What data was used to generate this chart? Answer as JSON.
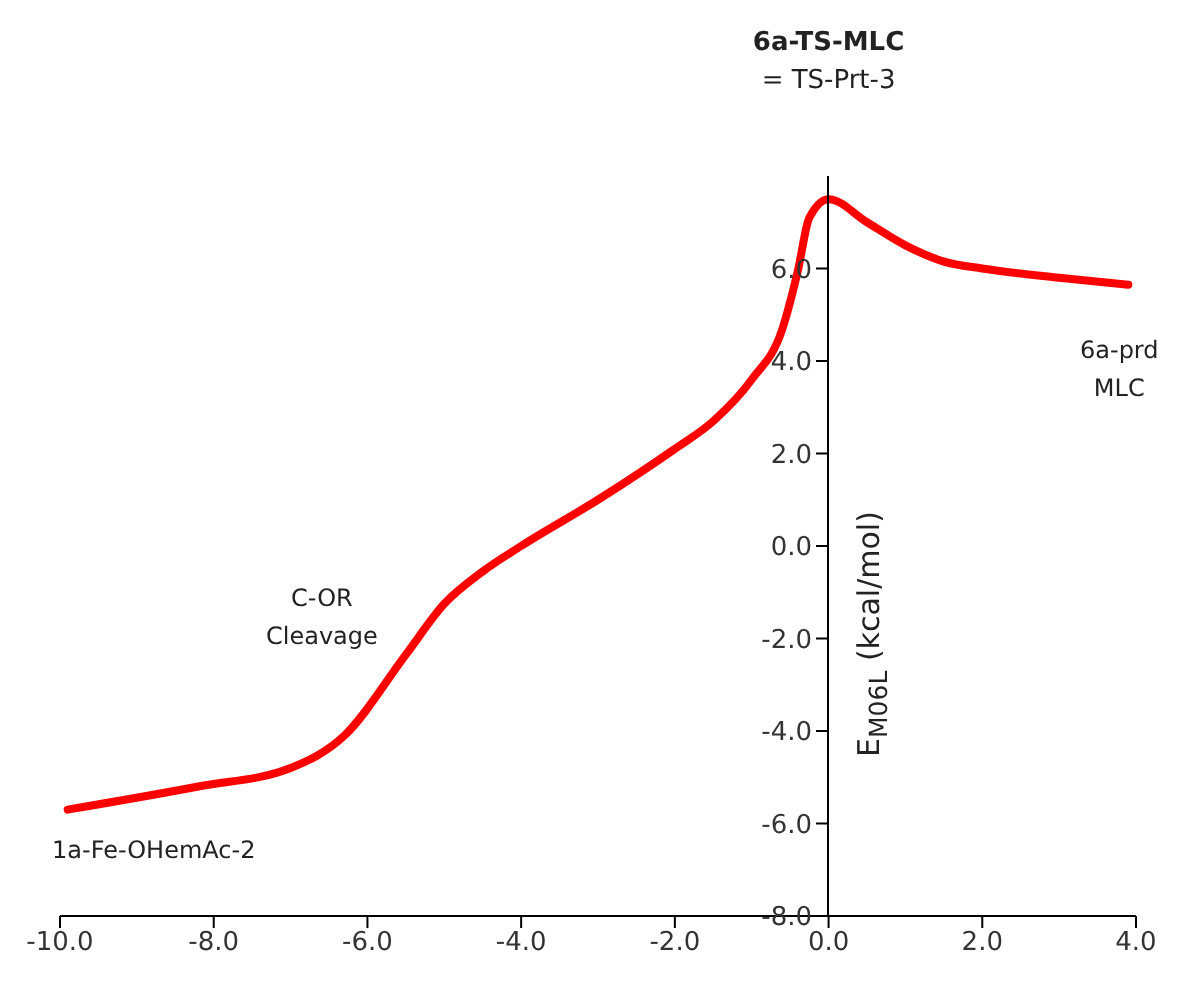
{
  "chart_data": {
    "type": "line",
    "title": "6a-TS-MLC",
    "subtitle": "= TS-Prt-3",
    "ylabel": "E$_{M06L}$ (kcal/mol)",
    "annotations": [
      "1a-Fe-OHemAc-2",
      "C-OR\nCleavage",
      "6a-prd\nMLC"
    ],
    "x": [
      -9.9,
      -8.2,
      -7.0,
      -6.3,
      -5.5,
      -5.0,
      -4.5,
      -4.0,
      -3.0,
      -2.0,
      -1.5,
      -1.0,
      -0.6,
      -0.4,
      -0.25,
      0,
      0.5,
      1.0,
      1.5,
      2.0,
      3.0,
      3.9
    ],
    "series": [
      {
        "color": "#ff0000",
        "values": [
          -5.7,
          -5.2,
          -4.8,
          -4.1,
          -2.35,
          -1.25,
          -0.55,
          0.0,
          1.0,
          2.1,
          2.7,
          3.6,
          4.7,
          5.95,
          7.1,
          7.5,
          7.0,
          6.5,
          6.15,
          6.0,
          5.8,
          5.65
        ]
      }
    ],
    "xlim": [
      -10,
      4
    ],
    "xticks": [
      {
        "value": -10,
        "label": "-10.0"
      },
      {
        "value": -8,
        "label": "-8.0"
      },
      {
        "value": -6,
        "label": "-6.0"
      },
      {
        "value": -4,
        "label": "-4.0"
      },
      {
        "value": -2,
        "label": "-2.0"
      },
      {
        "value": 0,
        "label": "0.0"
      },
      {
        "value": 2,
        "label": "2.0"
      },
      {
        "value": 4,
        "label": "4.0"
      }
    ],
    "ylim": [
      -8,
      8
    ],
    "yticks": [
      {
        "value": -8,
        "label": "-8.0"
      },
      {
        "value": -6,
        "label": "-6.0"
      },
      {
        "value": -4,
        "label": "-4.0"
      },
      {
        "value": -2,
        "label": "-2.0"
      },
      {
        "value": 0,
        "label": "0.0"
      },
      {
        "value": 2,
        "label": "2.0"
      },
      {
        "value": 4,
        "label": "4.0"
      },
      {
        "value": 6,
        "label": "6.0"
      }
    ],
    "grid": false,
    "legend": false,
    "marker": "none",
    "line_style": "solid"
  }
}
